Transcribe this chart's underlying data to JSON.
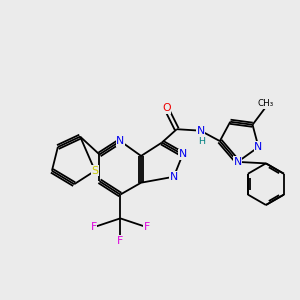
{
  "bg_color": "#ebebeb",
  "atom_colors": {
    "N": "#0000ee",
    "O": "#ee0000",
    "S": "#cccc00",
    "F": "#dd00dd",
    "H": "#008080",
    "C": "#000000"
  }
}
